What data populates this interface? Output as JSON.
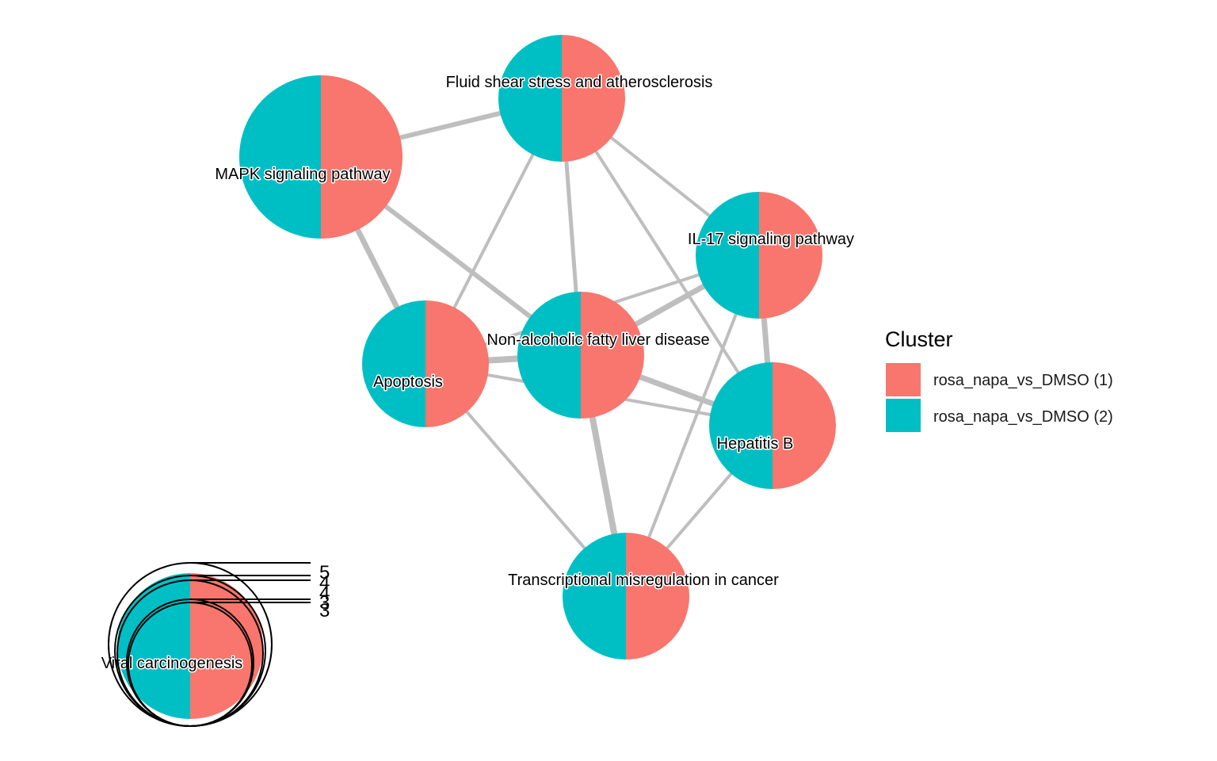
{
  "colors": {
    "cluster1": "#F8766D",
    "cluster2": "#00BFC4",
    "edge": "#BEBEBE",
    "size_ring": "#000000"
  },
  "nodes": [
    {
      "id": "fluid",
      "label": "Fluid shear stress and atherosclerosis",
      "cluster1_share": 0.5,
      "cluster2_share": 0.5
    },
    {
      "id": "mapk",
      "label": "MAPK signaling pathway",
      "cluster1_share": 0.5,
      "cluster2_share": 0.5
    },
    {
      "id": "il17",
      "label": "IL-17 signaling pathway",
      "cluster1_share": 0.5,
      "cluster2_share": 0.5
    },
    {
      "id": "apoptosis",
      "label": "Apoptosis",
      "cluster1_share": 0.5,
      "cluster2_share": 0.5
    },
    {
      "id": "nafld",
      "label": "Non-alcoholic fatty liver disease",
      "cluster1_share": 0.5,
      "cluster2_share": 0.5
    },
    {
      "id": "hepb",
      "label": "Hepatitis B",
      "cluster1_share": 0.5,
      "cluster2_share": 0.5
    },
    {
      "id": "trans",
      "label": "Transcriptional misregulation in cancer",
      "cluster1_share": 0.5,
      "cluster2_share": 0.5
    },
    {
      "id": "viral",
      "label": "Viral carcinogenesis",
      "cluster1_share": 0.5,
      "cluster2_share": 0.5
    }
  ],
  "edges": [
    {
      "source": "mapk",
      "target": "fluid"
    },
    {
      "source": "mapk",
      "target": "apoptosis"
    },
    {
      "source": "mapk",
      "target": "nafld"
    },
    {
      "source": "fluid",
      "target": "apoptosis"
    },
    {
      "source": "fluid",
      "target": "nafld"
    },
    {
      "source": "fluid",
      "target": "il17"
    },
    {
      "source": "fluid",
      "target": "hepb"
    },
    {
      "source": "il17",
      "target": "nafld"
    },
    {
      "source": "il17",
      "target": "apoptosis"
    },
    {
      "source": "il17",
      "target": "hepb"
    },
    {
      "source": "il17",
      "target": "trans"
    },
    {
      "source": "apoptosis",
      "target": "nafld"
    },
    {
      "source": "apoptosis",
      "target": "hepb"
    },
    {
      "source": "apoptosis",
      "target": "trans"
    },
    {
      "source": "nafld",
      "target": "hepb"
    },
    {
      "source": "nafld",
      "target": "trans"
    },
    {
      "source": "hepb",
      "target": "trans"
    }
  ],
  "legend": {
    "title": "Cluster",
    "items": [
      {
        "label": "rosa_napa_vs_DMSO (1)",
        "color_key": "cluster1"
      },
      {
        "label": "rosa_napa_vs_DMSO (2)",
        "color_key": "cluster2"
      }
    ]
  },
  "size_legend": {
    "values": [
      "5",
      "4",
      "4",
      "3",
      "3"
    ]
  }
}
